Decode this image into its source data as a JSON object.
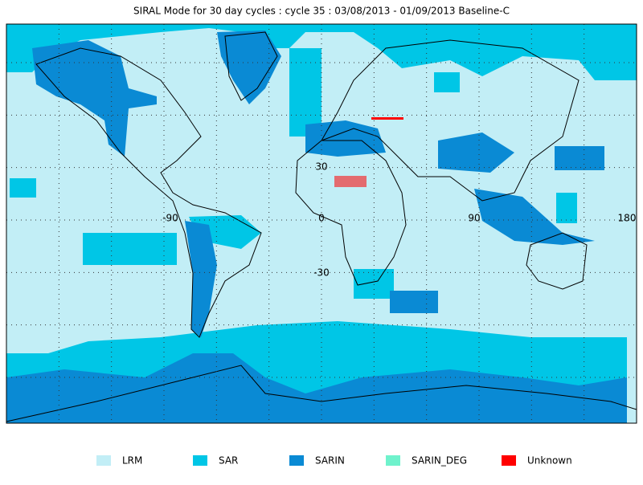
{
  "header": {
    "title": "SIRAL Mode for 30 day cycles : cycle 35 : 03/08/2013 - 01/09/2013 Baseline-C"
  },
  "map": {
    "grid_labels": [
      "30",
      "-90",
      "0",
      "90",
      "180",
      "-30"
    ]
  },
  "legend": {
    "items": [
      {
        "label": "LRM",
        "color": "#c2eef6"
      },
      {
        "label": "SAR",
        "color": "#00c6e6"
      },
      {
        "label": "SARIN",
        "color": "#0a8ad4"
      },
      {
        "label": "SARIN_DEG",
        "color": "#6ff2cc"
      },
      {
        "label": "Unknown",
        "color": "#ff0000"
      }
    ]
  }
}
